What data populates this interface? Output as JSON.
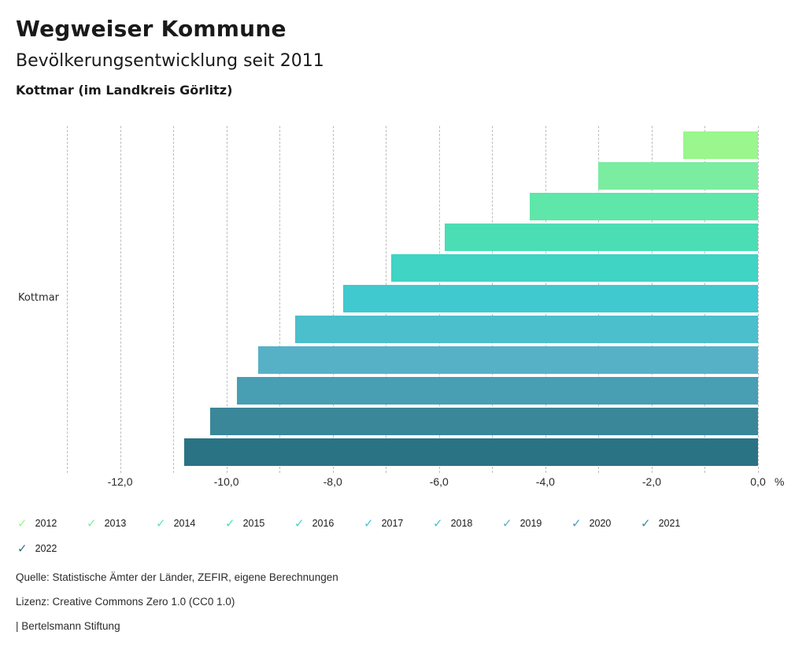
{
  "header": {
    "title": "Wegweiser Kommune",
    "subtitle": "Bevölkerungsentwicklung seit 2011",
    "location": "Kottmar (im Landkreis Görlitz)"
  },
  "chart_data": {
    "type": "bar",
    "orientation": "horizontal",
    "title": "Bevölkerungsentwicklung seit 2011",
    "category_label": "Kottmar",
    "unit": "%",
    "xlim": [
      -13,
      0
    ],
    "gridline_step": 1,
    "grid": true,
    "legend_position": "bottom",
    "categories": [
      "2012",
      "2013",
      "2014",
      "2015",
      "2016",
      "2017",
      "2018",
      "2019",
      "2020",
      "2021",
      "2022"
    ],
    "values": [
      -1.4,
      -3.0,
      -4.3,
      -5.9,
      -6.9,
      -7.8,
      -8.7,
      -9.4,
      -9.8,
      -10.3,
      -10.8
    ],
    "colors": [
      "#99F78D",
      "#7BEDA0",
      "#5FE6A9",
      "#4BDDB4",
      "#3FD4C4",
      "#40C9CE",
      "#4BBFCB",
      "#57B1C6",
      "#489EB2",
      "#3A8799",
      "#2A7384"
    ],
    "ticks": [
      {
        "value": -12,
        "label": "-12,0"
      },
      {
        "value": -10,
        "label": "-10,0"
      },
      {
        "value": -8,
        "label": "-8,0"
      },
      {
        "value": -6,
        "label": "-6,0"
      },
      {
        "value": -4,
        "label": "-4,0"
      },
      {
        "value": -2,
        "label": "-2,0"
      },
      {
        "value": 0,
        "label": "0,0"
      }
    ]
  },
  "legend": {
    "check_icon": "✓"
  },
  "footer": {
    "source": "Quelle: Statistische Ämter der Länder, ZEFIR, eigene Berechnungen",
    "license": "Lizenz: Creative Commons Zero 1.0 (CC0 1.0)",
    "branding": "| Bertelsmann Stiftung"
  }
}
